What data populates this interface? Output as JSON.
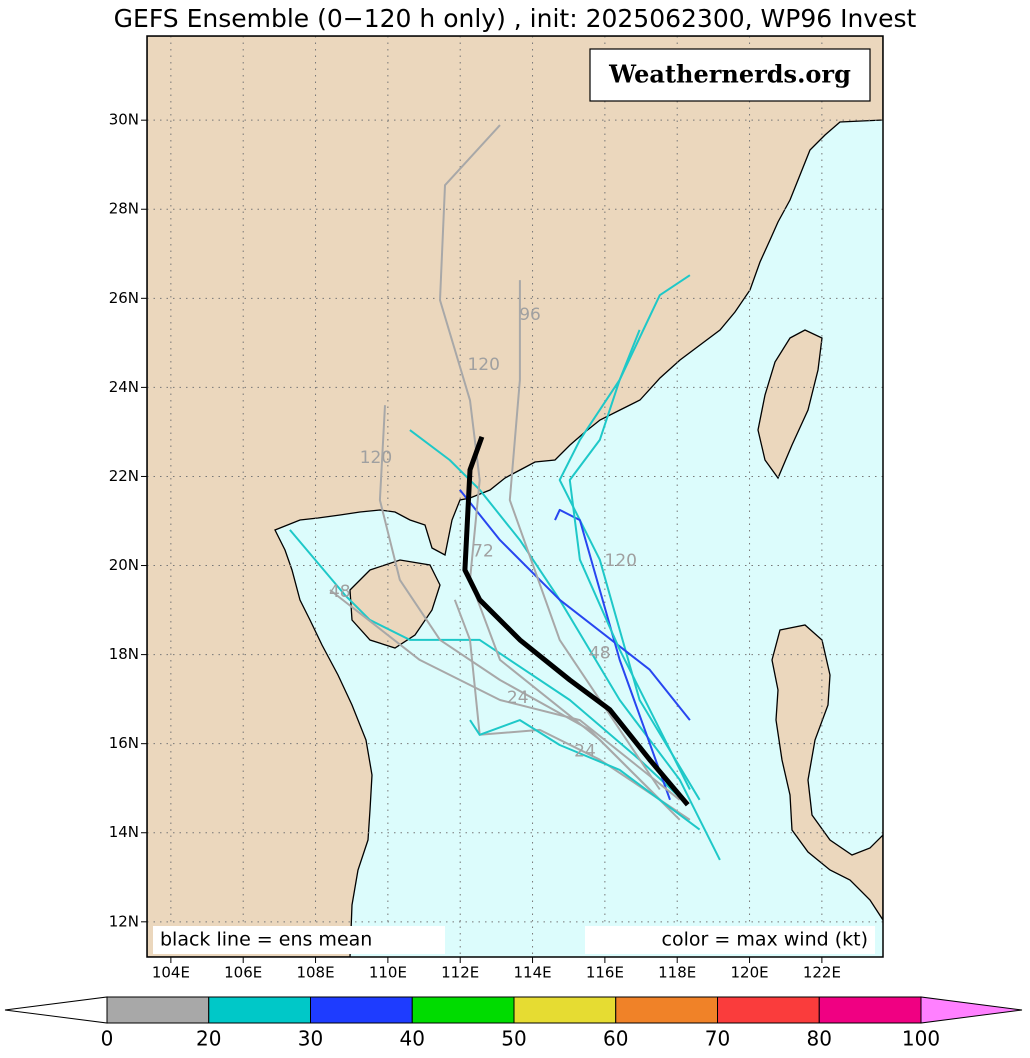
{
  "title": "GEFS Ensemble (0−120 h only) , init: 2025062300, WP96 Invest",
  "watermark": "Weathernerds.org",
  "map": {
    "lonlim": [
      103.34,
      123.69
    ],
    "latlim": [
      11.21,
      31.89
    ],
    "grid": true,
    "lonticks": [
      {
        "value": 104,
        "label": "104E"
      },
      {
        "value": 106,
        "label": "106E"
      },
      {
        "value": 108,
        "label": "108E"
      },
      {
        "value": 110,
        "label": "110E"
      },
      {
        "value": 112,
        "label": "112E"
      },
      {
        "value": 114,
        "label": "114E"
      },
      {
        "value": 116,
        "label": "116E"
      },
      {
        "value": 118,
        "label": "118E"
      },
      {
        "value": 120,
        "label": "120E"
      },
      {
        "value": 122,
        "label": "122E"
      }
    ],
    "latticks": [
      {
        "value": 12,
        "label": "12N"
      },
      {
        "value": 14,
        "label": "14N"
      },
      {
        "value": 16,
        "label": "16N"
      },
      {
        "value": 18,
        "label": "18N"
      },
      {
        "value": 20,
        "label": "20N"
      },
      {
        "value": 22,
        "label": "22N"
      },
      {
        "value": 24,
        "label": "24N"
      },
      {
        "value": 26,
        "label": "26N"
      },
      {
        "value": 28,
        "label": "28N"
      },
      {
        "value": 30,
        "label": "30N"
      }
    ],
    "tracks": [
      {
        "color": "#1ec8c8",
        "lon": [
          118.29,
          116.96,
          115.03,
          112.54,
          110.61,
          109.5,
          108.81,
          107.29
        ],
        "lat": [
          14.63,
          15.64,
          16.98,
          18.33,
          18.33,
          18.78,
          19.34,
          20.8
        ]
      },
      {
        "color": "#1ec8c8",
        "lon": [
          118.62,
          116.96,
          115.86,
          114.75,
          115.31,
          116.41,
          116.96
        ],
        "lat": [
          14.74,
          16.98,
          20.13,
          21.92,
          22.82,
          24.17,
          25.29
        ]
      },
      {
        "color": "#1ec8c8",
        "lon": [
          119.18,
          118.07,
          116.41,
          114.75,
          113.65,
          112.54,
          111.71,
          110.61
        ],
        "lat": [
          13.39,
          15.19,
          16.98,
          19.23,
          20.57,
          21.7,
          22.37,
          23.04
        ]
      },
      {
        "color": "#2846f0",
        "lon": [
          118.35,
          117.24,
          114.75,
          113.1,
          111.99
        ],
        "lat": [
          16.53,
          17.66,
          19.23,
          20.57,
          21.7
        ]
      },
      {
        "color": "#2846f0",
        "lon": [
          117.8,
          116.41,
          115.31,
          114.75,
          114.62
        ],
        "lat": [
          14.74,
          17.88,
          21.02,
          21.25,
          21.02
        ]
      },
      {
        "color": "#a8a8a8",
        "lon": [
          118.07,
          115.86,
          113.1,
          112.27,
          112.54,
          112.27,
          111.44,
          111.58,
          113.1
        ],
        "lat": [
          14.29,
          16.09,
          17.88,
          19.68,
          21.92,
          23.71,
          25.96,
          28.54,
          29.89
        ]
      },
      {
        "color": "#a8a8a8",
        "lon": [
          117.8,
          115.58,
          113.1,
          111.44,
          110.33,
          109.78,
          109.92
        ],
        "lat": [
          14.52,
          16.31,
          17.43,
          18.33,
          19.68,
          21.47,
          23.6
        ]
      },
      {
        "color": "#a8a8a8",
        "lon": [
          118.07,
          115.31,
          113.1,
          110.88,
          108.4
        ],
        "lat": [
          14.74,
          16.53,
          16.98,
          17.88,
          19.45
        ]
      },
      {
        "color": "#a8a8a8",
        "lon": [
          118.35,
          115.86,
          114.2,
          112.54,
          112.27,
          111.85
        ],
        "lat": [
          14.29,
          15.64,
          16.31,
          16.2,
          18.33,
          19.23
        ]
      },
      {
        "color": "#1ec8c8",
        "lon": [
          118.62,
          116.41,
          114.75,
          113.65,
          112.54,
          112.27
        ],
        "lat": [
          14.07,
          15.41,
          15.97,
          16.53,
          16.2,
          16.53
        ]
      },
      {
        "color": "#a8a8a8",
        "lon": [
          117.52,
          114.75,
          113.37,
          113.65,
          113.65
        ],
        "lat": [
          14.97,
          18.33,
          21.47,
          24.17,
          26.41
        ]
      },
      {
        "color": "#1ec8c8",
        "lon": [
          118.35,
          116.41,
          115.31,
          115.03,
          115.86,
          116.41,
          117.52,
          118.35
        ],
        "lat": [
          14.97,
          18.11,
          20.13,
          21.92,
          22.82,
          24.17,
          26.07,
          26.52
        ]
      }
    ],
    "mean": {
      "color": "#000000",
      "lon": [
        112.6,
        112.27,
        112.13,
        112.54,
        113.65,
        115.03,
        116.14,
        117.24,
        118.29
      ],
      "lat": [
        22.89,
        22.15,
        19.9,
        19.23,
        18.33,
        17.43,
        16.76,
        15.64,
        14.63
      ]
    },
    "annotations": [
      {
        "text": "120",
        "lon": 109.67,
        "lat": 22.41
      },
      {
        "text": "120",
        "lon": 112.65,
        "lat": 24.5
      },
      {
        "text": "96",
        "lon": 113.93,
        "lat": 25.62
      },
      {
        "text": "120",
        "lon": 116.44,
        "lat": 20.1
      },
      {
        "text": "48",
        "lon": 108.67,
        "lat": 19.41
      },
      {
        "text": "48",
        "lon": 115.86,
        "lat": 18.02
      },
      {
        "text": "24",
        "lon": 115.45,
        "lat": 15.82
      },
      {
        "text": "24",
        "lon": 113.59,
        "lat": 17.03
      },
      {
        "text": "72",
        "lon": 112.63,
        "lat": 20.31
      }
    ],
    "legend_left": "black line = ens mean",
    "legend_right": "color = max wind (kt)"
  },
  "colorbar": {
    "ticks": [
      0,
      20,
      30,
      40,
      50,
      60,
      70,
      80,
      100
    ],
    "colors": [
      "#a8a8a8",
      "#00c8c8",
      "#1e3cff",
      "#00dc00",
      "#e6dc32",
      "#f08228",
      "#fa3c3c",
      "#f00082"
    ],
    "under": "#ffffff",
    "over": "#ff80ff"
  }
}
